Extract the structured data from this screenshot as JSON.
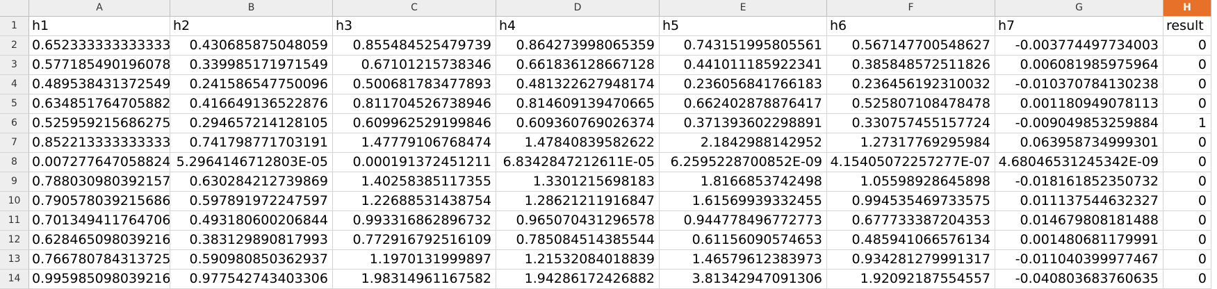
{
  "columns": [
    "A",
    "B",
    "C",
    "D",
    "E",
    "F",
    "G",
    "H"
  ],
  "active_column": "H",
  "rows": [
    {
      "n": "1",
      "cells": [
        "h1",
        "h2",
        "h3",
        "h4",
        "h5",
        "h6",
        "h7",
        "result"
      ]
    },
    {
      "n": "2",
      "cells": [
        "0.652333333333333",
        "0.430685875048059",
        "0.855484525479739",
        "0.864273998065359",
        "0.743151995805561",
        "0.567147700548627",
        "-0.003774497734003",
        "0"
      ]
    },
    {
      "n": "3",
      "cells": [
        "0.577185490196078",
        "0.339985171971549",
        "0.67101215738346",
        "0.661836128667128",
        "0.441011185922341",
        "0.385848572511826",
        "0.006081985975964",
        "0"
      ]
    },
    {
      "n": "4",
      "cells": [
        "0.489538431372549",
        "0.241586547750096",
        "0.500681783477893",
        "0.481322627948174",
        "0.236056841766183",
        "0.236456192310032",
        "-0.010370784130238",
        "0"
      ]
    },
    {
      "n": "5",
      "cells": [
        "0.634851764705882",
        "0.416649136522876",
        "0.811704526738946",
        "0.814609139470665",
        "0.662402878876417",
        "0.525807108478478",
        "0.001180949078113",
        "0"
      ]
    },
    {
      "n": "6",
      "cells": [
        "0.525959215686275",
        "0.294657214128105",
        "0.609962529199846",
        "0.609360769026374",
        "0.371393602298891",
        "0.330757455157724",
        "-0.009049853259884",
        "1"
      ]
    },
    {
      "n": "7",
      "cells": [
        "0.852213333333333",
        "0.741798771703191",
        "1.47779106768474",
        "1.47840839582622",
        "2.1842988142952",
        "1.27317769295984",
        "0.063958734999301",
        "0"
      ]
    },
    {
      "n": "8",
      "cells": [
        "0.007277647058824",
        "5.2964146712803E-05",
        "0.000191372451211",
        "6.8342847212611E-05",
        "6.2595228700852E-09",
        "4.15405072257277E-07",
        "4.68046531245342E-09",
        "0"
      ]
    },
    {
      "n": "9",
      "cells": [
        "0.788030980392157",
        "0.630284212739869",
        "1.40258385117355",
        "1.3301215698183",
        "1.8166853742498",
        "1.05598928645898",
        "-0.018161852350732",
        "0"
      ]
    },
    {
      "n": "10",
      "cells": [
        "0.790578039215686",
        "0.597891972247597",
        "1.22688531438754",
        "1.28621211916847",
        "1.61569939332455",
        "0.994535469733575",
        "0.011137544632327",
        "0"
      ]
    },
    {
      "n": "11",
      "cells": [
        "0.701349411764706",
        "0.493180600206844",
        "0.993316862896732",
        "0.965070431296578",
        "0.944778496772773",
        "0.677733387204353",
        "0.014679808181488",
        "0"
      ]
    },
    {
      "n": "12",
      "cells": [
        "0.628465098039216",
        "0.383129890817993",
        "0.772916792516109",
        "0.785084514385544",
        "0.61156090574653",
        "0.485941066576134",
        "0.001480681179991",
        "0"
      ]
    },
    {
      "n": "13",
      "cells": [
        "0.766780784313725",
        "0.590980850362937",
        "1.1970131999897",
        "1.21532084018839",
        "1.46579612383973",
        "0.934281279991317",
        "-0.011040399977467",
        "0"
      ]
    },
    {
      "n": "14",
      "cells": [
        "0.995985098039216",
        "0.977542743403306",
        "1.98314961167582",
        "1.94286172426882",
        "3.81342947091306",
        "1.92092187554557",
        "-0.040803683760635",
        "0"
      ]
    }
  ]
}
